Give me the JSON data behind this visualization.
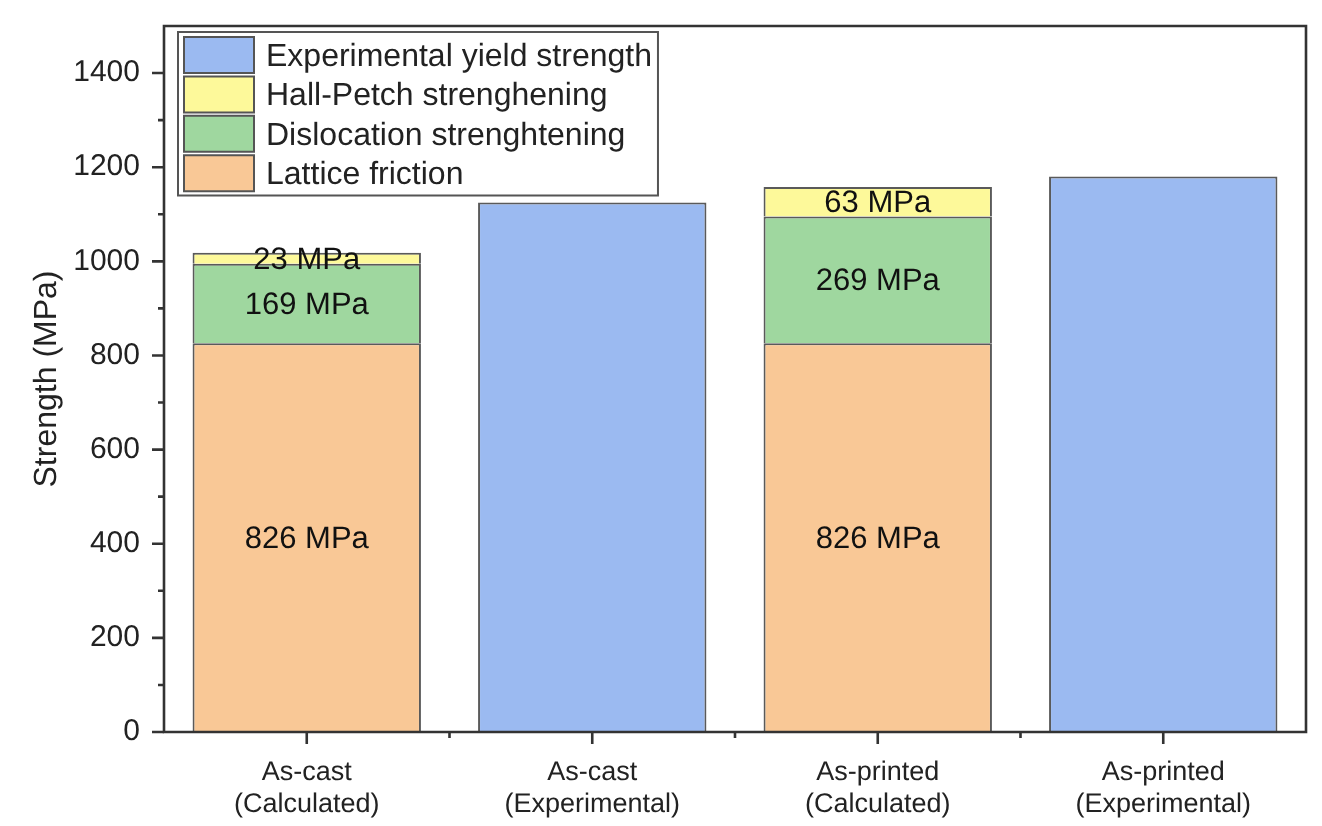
{
  "chart_data": {
    "type": "bar",
    "categories": [
      "As-cast\n(Calculated)",
      "As-cast\n(Experimental)",
      "As-printed\n(Calculated)",
      "As-printed\n(Experimental)"
    ],
    "series": [
      {
        "name": "Lattice friction",
        "color": "#f9c896",
        "values": [
          826,
          null,
          826,
          null
        ],
        "value_labels": [
          "826 MPa",
          null,
          "826 MPa",
          null
        ]
      },
      {
        "name": "Dislocation strenghtening",
        "color": "#9fd79f",
        "values": [
          169,
          null,
          269,
          null
        ],
        "value_labels": [
          "169 MPa",
          null,
          "269 MPa",
          null
        ]
      },
      {
        "name": "Hall-Petch strenghening",
        "color": "#fdf99a",
        "values": [
          23,
          null,
          63,
          null
        ],
        "value_labels": [
          "23 MPa",
          null,
          "63 MPa",
          null
        ]
      },
      {
        "name": "Experimental yield strength",
        "color": "#9bbaf1",
        "values": [
          null,
          1125,
          null,
          1180
        ]
      }
    ],
    "stacked": true,
    "ylabel": "Strength (MPa)",
    "ylim": [
      0,
      1500
    ],
    "yticks": [
      0,
      {
        "value": 100,
        "label": null
      },
      200,
      {
        "value": 300,
        "label": null
      },
      400,
      {
        "value": 500,
        "label": null
      },
      600,
      {
        "value": 700,
        "label": null
      },
      800,
      {
        "value": 900,
        "label": null
      },
      1000,
      {
        "value": 1100,
        "label": null
      },
      1200,
      {
        "value": 1300,
        "label": null
      },
      1400
    ],
    "legend": "top left"
  }
}
